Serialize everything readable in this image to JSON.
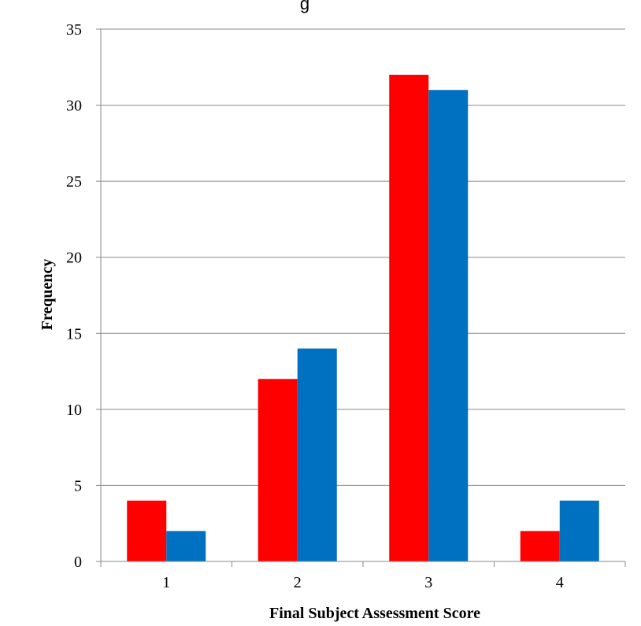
{
  "chart_data": {
    "type": "bar",
    "title_fragment": "g",
    "xlabel": "Final Subject Assessment Score",
    "ylabel": "Frequency",
    "categories": [
      "1",
      "2",
      "3",
      "4"
    ],
    "series": [
      {
        "color": "#ff0000",
        "values": [
          4,
          12,
          32,
          2
        ]
      },
      {
        "color": "#0070c0",
        "values": [
          2,
          14,
          31,
          4
        ]
      }
    ],
    "ylim": [
      0,
      35
    ],
    "yticks": [
      0,
      5,
      10,
      15,
      20,
      25,
      30,
      35
    ],
    "grid": true,
    "legend": "none"
  }
}
